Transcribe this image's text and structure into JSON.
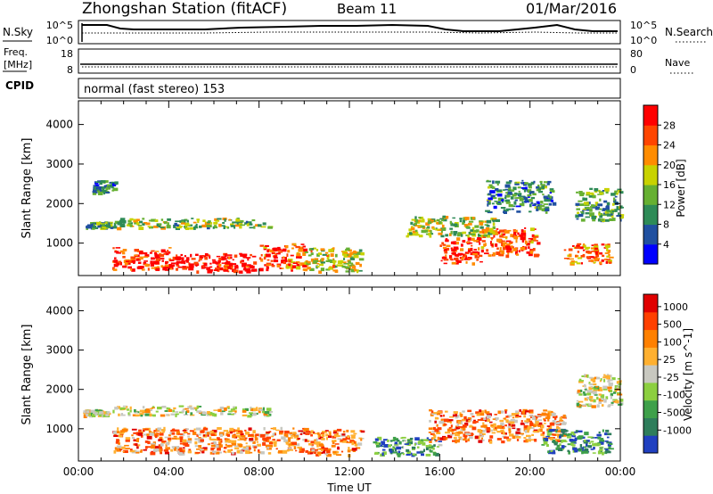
{
  "header": {
    "station": "Zhongshan Station (fitACF)",
    "beam": "Beam 11",
    "date": "01/Mar/2016"
  },
  "noise_panel": {
    "left_label": "N.Sky",
    "right_label": "N.Search",
    "left_ticks": [
      "10^5",
      "10^0"
    ],
    "right_ticks": [
      "10^5",
      "10^0"
    ]
  },
  "freq_panel": {
    "left_label_1": "Freq.",
    "left_label_2": "[MHz]",
    "right_label": "Nave",
    "left_ticks": [
      "18",
      "8"
    ],
    "right_ticks": [
      "80",
      "0"
    ]
  },
  "cpid": {
    "label": "CPID",
    "text": "normal (fast stereo) 153"
  },
  "chart_data": [
    {
      "type": "heatmap",
      "name": "power",
      "xlabel": "",
      "ylabel": "Slant Range [km]",
      "xlim": [
        0,
        24
      ],
      "ylim": [
        180,
        4600
      ],
      "yticks": [
        "1000",
        "2000",
        "3000",
        "4000"
      ],
      "colorbar": {
        "title": "Power [dB]",
        "ticks": [
          "28",
          "24",
          "20",
          "16",
          "12",
          "8",
          "4"
        ],
        "colors": [
          "#0000ff",
          "#2050a0",
          "#2e8b57",
          "#66b032",
          "#c8d200",
          "#ff8c00",
          "#ff4500",
          "#ff0000"
        ]
      },
      "regions": [
        {
          "x": [
            1.5,
            4.2
          ],
          "y": [
            350,
            900
          ],
          "level": 0.85
        },
        {
          "x": [
            4.2,
            7.8
          ],
          "y": [
            300,
            750
          ],
          "level": 0.95
        },
        {
          "x": [
            8.0,
            10.0
          ],
          "y": [
            350,
            1000
          ],
          "level": 0.8
        },
        {
          "x": [
            10.0,
            12.5
          ],
          "y": [
            300,
            900
          ],
          "level": 0.55
        },
        {
          "x": [
            16.0,
            17.8
          ],
          "y": [
            500,
            1150
          ],
          "level": 0.9
        },
        {
          "x": [
            17.8,
            20.3
          ],
          "y": [
            700,
            1400
          ],
          "level": 0.8
        },
        {
          "x": [
            21.5,
            23.5
          ],
          "y": [
            500,
            1000
          ],
          "level": 0.75
        },
        {
          "x": [
            0.3,
            1.5
          ],
          "y": [
            1400,
            1550
          ],
          "level": 0.35
        },
        {
          "x": [
            0.6,
            1.6
          ],
          "y": [
            2300,
            2600
          ],
          "level": 0.25
        },
        {
          "x": [
            1.5,
            8.5
          ],
          "y": [
            1400,
            1650
          ],
          "level": 0.45
        },
        {
          "x": [
            14.5,
            18.5
          ],
          "y": [
            1200,
            1700
          ],
          "level": 0.5
        },
        {
          "x": [
            18.0,
            21.0
          ],
          "y": [
            1800,
            2600
          ],
          "level": 0.3
        },
        {
          "x": [
            22.0,
            24.0
          ],
          "y": [
            1600,
            2400
          ],
          "level": 0.4
        }
      ]
    },
    {
      "type": "heatmap",
      "name": "velocity",
      "xlabel": "Time UT",
      "ylabel": "Slant Range [km]",
      "xlim": [
        0,
        24
      ],
      "ylim": [
        180,
        4600
      ],
      "yticks": [
        "1000",
        "2000",
        "3000",
        "4000"
      ],
      "xticks": [
        "00:00",
        "04:00",
        "08:00",
        "12:00",
        "16:00",
        "20:00",
        "00:00"
      ],
      "colorbar": {
        "title": "Velocity [m s^-1]",
        "ticks": [
          "1000",
          "500",
          "100",
          "25",
          "-25",
          "-100",
          "-500",
          "-1000"
        ],
        "colors": [
          "#2040c0",
          "#2e7d5b",
          "#3ea04a",
          "#8ccf40",
          "#c8c8c0",
          "#ffb030",
          "#ff8000",
          "#ff4000",
          "#e00000"
        ]
      },
      "regions": [
        {
          "x": [
            0.2,
            1.3
          ],
          "y": [
            1350,
            1500
          ],
          "level": 0.5
        },
        {
          "x": [
            1.5,
            8.5
          ],
          "y": [
            1350,
            1600
          ],
          "level": 0.5
        },
        {
          "x": [
            1.5,
            10.0
          ],
          "y": [
            400,
            1050
          ],
          "level": 0.7
        },
        {
          "x": [
            10.0,
            12.5
          ],
          "y": [
            350,
            1000
          ],
          "level": 0.75
        },
        {
          "x": [
            15.5,
            21.5
          ],
          "y": [
            700,
            1500
          ],
          "level": 0.7
        },
        {
          "x": [
            13.0,
            16.0
          ],
          "y": [
            350,
            800
          ],
          "level": 0.25
        },
        {
          "x": [
            20.5,
            23.5
          ],
          "y": [
            400,
            1000
          ],
          "level": 0.2
        },
        {
          "x": [
            22.0,
            24.0
          ],
          "y": [
            1600,
            2400
          ],
          "level": 0.5
        }
      ]
    }
  ]
}
